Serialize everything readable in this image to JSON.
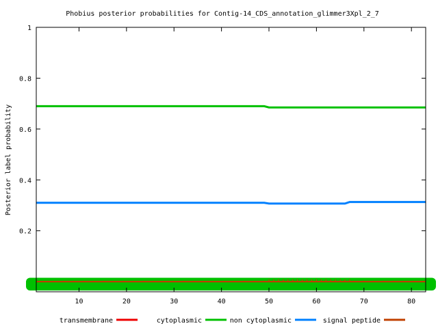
{
  "chart_data": {
    "type": "line",
    "title": "Phobius posterior probabilities for Contig-14_CDS_annotation_glimmer3Xpl_2_7",
    "xlabel": "",
    "ylabel": "Posterior label probability",
    "xlim": [
      1,
      83
    ],
    "ylim": [
      -0.04,
      1.0
    ],
    "x_ticks": [
      10,
      20,
      30,
      40,
      50,
      60,
      70,
      80
    ],
    "y_ticks": [
      0.2,
      0.4,
      0.6,
      0.8,
      1
    ],
    "grid": false,
    "legend_position": "bottom",
    "colors": {
      "transmembrane": "#ee0000",
      "cytoplasmic": "#00c000",
      "non_cytoplasmic": "#0080ff",
      "signal_peptide": "#c04000"
    },
    "legend": [
      {
        "name": "transmembrane",
        "color": "#ee0000"
      },
      {
        "name": "cytoplasmic",
        "color": "#00c000"
      },
      {
        "name": "non cytoplasmic",
        "color": "#0080ff"
      },
      {
        "name": "signal peptide",
        "color": "#c04000"
      }
    ],
    "series": [
      {
        "name": "transmembrane",
        "color": "#ee0000",
        "x": [
          1,
          83
        ],
        "y": [
          0.0,
          0.0
        ]
      },
      {
        "name": "cytoplasmic",
        "color": "#00c000",
        "x": [
          1,
          49,
          50,
          83
        ],
        "y": [
          0.69,
          0.69,
          0.685,
          0.685
        ]
      },
      {
        "name": "non cytoplasmic",
        "color": "#0080ff",
        "x": [
          1,
          49,
          50,
          66,
          67,
          83
        ],
        "y": [
          0.31,
          0.31,
          0.307,
          0.307,
          0.313,
          0.313
        ]
      },
      {
        "name": "signal peptide",
        "color": "#c04000",
        "x": [
          1,
          83
        ],
        "y": [
          0.0,
          0.0
        ]
      }
    ],
    "signal_peptide_spikes": {
      "x_start": 50,
      "x_end": 67,
      "y": 0.01
    },
    "baseline_band_color": "#00c000"
  }
}
